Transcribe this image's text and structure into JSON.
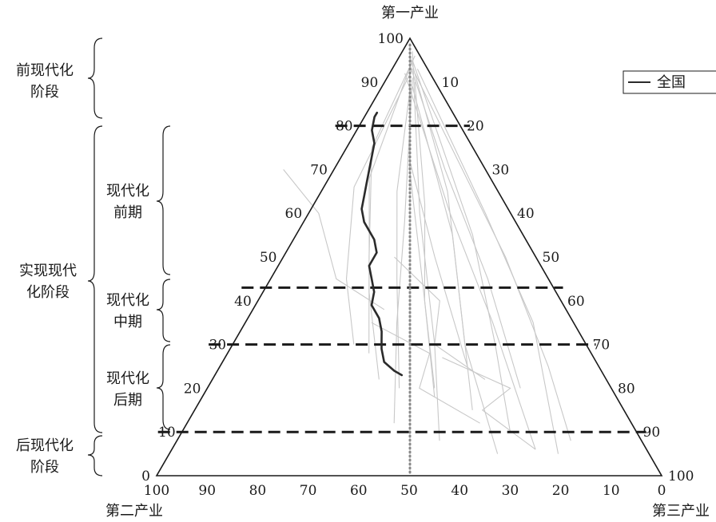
{
  "corner_labels": {
    "top": "第一产业",
    "bottom_left": "第二产业",
    "bottom_right": "第三产业"
  },
  "legend": {
    "label": "全国"
  },
  "stage_labels": {
    "pre_modern": [
      "前现代化",
      "阶段"
    ],
    "modernizing": [
      "实现现代",
      "化阶段"
    ],
    "early": [
      "现代化",
      "前期"
    ],
    "middle": [
      "现代化",
      "中期"
    ],
    "late": [
      "现代化",
      "后期"
    ],
    "post_modern": [
      "后现代化",
      "阶段"
    ]
  },
  "chart_data": {
    "type": "ternary",
    "axes": {
      "primary": {
        "label": "第一产业",
        "ticks": [
          "0",
          "10",
          "20",
          "30",
          "40",
          "50",
          "60",
          "70",
          "80",
          "90",
          "100"
        ]
      },
      "secondary": {
        "label": "第二产业",
        "ticks": [
          "100",
          "90",
          "80",
          "70",
          "60",
          "50",
          "40",
          "30",
          "20",
          "10",
          "0"
        ]
      },
      "tertiary": {
        "label": "第三产业",
        "ticks": [
          "10",
          "20",
          "30",
          "40",
          "50",
          "60",
          "70",
          "80",
          "90",
          "100"
        ]
      }
    },
    "threshold_lines_primary_pct": [
      80,
      43,
      30,
      10
    ],
    "midline_secondary_pct": 50,
    "series": [
      {
        "name": "全国",
        "color": "#2b2b2b",
        "points": [
          {
            "p": 83,
            "s": 15
          },
          {
            "p": 82,
            "s": 16
          },
          {
            "p": 79,
            "s": 18
          },
          {
            "p": 76,
            "s": 19
          },
          {
            "p": 73,
            "s": 21
          },
          {
            "p": 70,
            "s": 23
          },
          {
            "p": 67,
            "s": 25
          },
          {
            "p": 64,
            "s": 27
          },
          {
            "p": 61,
            "s": 29
          },
          {
            "p": 58,
            "s": 30
          },
          {
            "p": 54,
            "s": 30
          },
          {
            "p": 51,
            "s": 31
          },
          {
            "p": 48,
            "s": 34
          },
          {
            "p": 45,
            "s": 35
          },
          {
            "p": 42,
            "s": 36
          },
          {
            "p": 39,
            "s": 38
          },
          {
            "p": 36,
            "s": 38
          },
          {
            "p": 33,
            "s": 39
          },
          {
            "p": 31,
            "s": 40
          },
          {
            "p": 29,
            "s": 41
          },
          {
            "p": 26,
            "s": 42
          },
          {
            "p": 24,
            "s": 41
          },
          {
            "p": 23,
            "s": 40
          }
        ]
      }
    ],
    "background_trajectories": {
      "color": "#c8c8c8",
      "paths": [
        [
          {
            "p": 98,
            "s": 1
          },
          {
            "p": 70,
            "s": 15
          },
          {
            "p": 45,
            "s": 25
          },
          {
            "p": 20,
            "s": 35
          }
        ],
        [
          {
            "p": 97,
            "s": 1
          },
          {
            "p": 60,
            "s": 18
          },
          {
            "p": 30,
            "s": 30
          },
          {
            "p": 8,
            "s": 40
          }
        ],
        [
          {
            "p": 96,
            "s": 2
          },
          {
            "p": 65,
            "s": 10
          },
          {
            "p": 40,
            "s": 20
          },
          {
            "p": 15,
            "s": 30
          }
        ],
        [
          {
            "p": 95,
            "s": 2
          },
          {
            "p": 55,
            "s": 10
          },
          {
            "p": 30,
            "s": 18
          },
          {
            "p": 10,
            "s": 25
          }
        ],
        [
          {
            "p": 94,
            "s": 3
          },
          {
            "p": 70,
            "s": 8
          },
          {
            "p": 45,
            "s": 12
          },
          {
            "p": 20,
            "s": 18
          }
        ],
        [
          {
            "p": 93,
            "s": 2
          },
          {
            "p": 60,
            "s": 5
          },
          {
            "p": 35,
            "s": 8
          },
          {
            "p": 5,
            "s": 18
          }
        ],
        [
          {
            "p": 92,
            "s": 3
          },
          {
            "p": 50,
            "s": 6
          },
          {
            "p": 25,
            "s": 10
          },
          {
            "p": 8,
            "s": 14
          }
        ],
        [
          {
            "p": 96,
            "s": 1
          },
          {
            "p": 75,
            "s": 20
          },
          {
            "p": 50,
            "s": 33
          },
          {
            "p": 28,
            "s": 44
          }
        ],
        [
          {
            "p": 95,
            "s": 2
          },
          {
            "p": 68,
            "s": 24
          },
          {
            "p": 42,
            "s": 37
          },
          {
            "p": 22,
            "s": 45
          }
        ],
        [
          {
            "p": 91,
            "s": 4
          },
          {
            "p": 58,
            "s": 22
          },
          {
            "p": 35,
            "s": 35
          },
          {
            "p": 12,
            "s": 47
          }
        ],
        [
          {
            "p": 90,
            "s": 4
          },
          {
            "p": 62,
            "s": 16
          },
          {
            "p": 40,
            "s": 27
          },
          {
            "p": 18,
            "s": 36
          }
        ],
        [
          {
            "p": 89,
            "s": 5
          },
          {
            "p": 55,
            "s": 14
          },
          {
            "p": 30,
            "s": 24
          },
          {
            "p": 5,
            "s": 30
          }
        ],
        [
          {
            "p": 94,
            "s": 3
          },
          {
            "p": 72,
            "s": 14
          },
          {
            "p": 50,
            "s": 20
          },
          {
            "p": 25,
            "s": 26
          }
        ],
        [
          {
            "p": 88,
            "s": 6
          },
          {
            "p": 65,
            "s": 20
          },
          {
            "p": 45,
            "s": 30
          },
          {
            "p": 20,
            "s": 42
          }
        ],
        [
          {
            "p": 93,
            "s": 3
          },
          {
            "p": 66,
            "s": 28
          },
          {
            "p": 45,
            "s": 40
          },
          {
            "p": 30,
            "s": 46
          }
        ],
        [
          {
            "p": 92,
            "s": 5
          },
          {
            "p": 60,
            "s": 12
          },
          {
            "p": 35,
            "s": 16
          },
          {
            "p": 6,
            "s": 22
          }
        ],
        [
          {
            "p": 70,
            "s": 40
          },
          {
            "p": 60,
            "s": 38
          },
          {
            "p": 45,
            "s": 42
          },
          {
            "p": 38,
            "s": 36
          }
        ],
        [
          {
            "p": 50,
            "s": 28
          },
          {
            "p": 40,
            "s": 24
          },
          {
            "p": 30,
            "s": 30
          },
          {
            "p": 22,
            "s": 24
          }
        ],
        [
          {
            "p": 35,
            "s": 40
          },
          {
            "p": 28,
            "s": 32
          },
          {
            "p": 20,
            "s": 38
          },
          {
            "p": 12,
            "s": 30
          }
        ],
        [
          {
            "p": 27,
            "s": 30
          },
          {
            "p": 20,
            "s": 20
          },
          {
            "p": 15,
            "s": 28
          },
          {
            "p": 6,
            "s": 22
          }
        ]
      ]
    },
    "legend_position": "top-right",
    "grid": false
  }
}
